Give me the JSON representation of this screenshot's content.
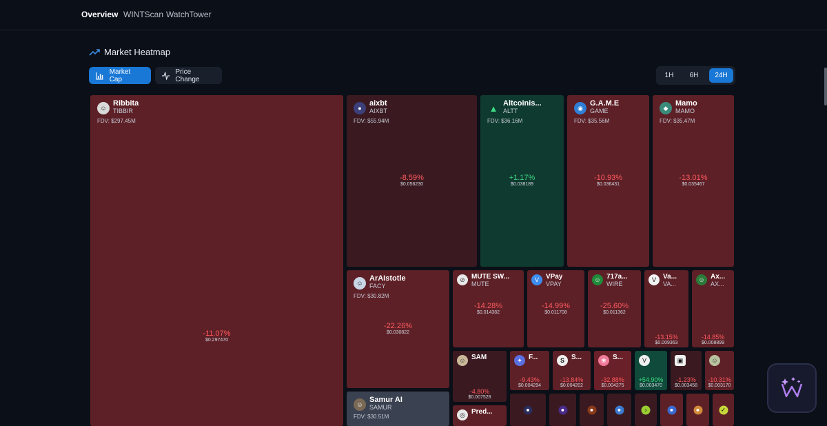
{
  "nav": {
    "items": [
      "Overview",
      "WINTScan",
      "WatchTower"
    ]
  },
  "heading": {
    "title": "Market Heatmap"
  },
  "toggles": {
    "market_cap": "Market Cap",
    "price_change": "Price Change"
  },
  "timeframes": [
    "1H",
    "6H",
    "24H"
  ],
  "tokens": [
    {
      "name": "Ribbita",
      "symbol": "TIBBIR",
      "fdv": "FDV: $297.45M",
      "change": "-11.07%",
      "price": "$0.297470"
    },
    {
      "name": "aixbt",
      "symbol": "AIXBT",
      "fdv": "FDV: $55.94M",
      "change": "-8.59%",
      "price": "$0.056230"
    },
    {
      "name": "Altcoinis...",
      "symbol": "ALTT",
      "fdv": "FDV: $36.16M",
      "change": "+1.17%",
      "price": "$0.038189"
    },
    {
      "name": "G.A.M.E",
      "symbol": "GAME",
      "fdv": "FDV: $35.56M",
      "change": "-10.93%",
      "price": "$0.036431"
    },
    {
      "name": "Mamo",
      "symbol": "MAMO",
      "fdv": "FDV: $35.47M",
      "change": "-13.01%",
      "price": "$0.035467"
    },
    {
      "name": "ArAIstotle",
      "symbol": "FACY",
      "fdv": "FDV: $30.82M",
      "change": "-22.26%",
      "price": "$0.030822"
    },
    {
      "name": "MUTE SW...",
      "symbol": "MUTE",
      "change": "-14.28%",
      "price": "$0.014382"
    },
    {
      "name": "VPay",
      "symbol": "VPAY",
      "change": "-14.99%",
      "price": "$0.011708"
    },
    {
      "name": "717a...",
      "symbol": "WIRE",
      "change": "-25.60%",
      "price": "$0.011362"
    },
    {
      "name": "Va...",
      "symbol": "VA...",
      "change": "-13.15%",
      "price": "$0.009363"
    },
    {
      "name": "Ax...",
      "symbol": "AX...",
      "change": "-14.85%",
      "price": "$0.008899"
    },
    {
      "name": "SAM",
      "change": "-4.80%",
      "price": "$0.007528"
    },
    {
      "name": "F...",
      "change": "-9.43%",
      "price": "$0.004294"
    },
    {
      "name": "S...",
      "change": "-13.84%",
      "price": "$0.004202"
    },
    {
      "name": "S...",
      "change": "-32.88%",
      "price": "$0.004275"
    },
    {
      "change": "+54.90%",
      "price": "$0.003470"
    },
    {
      "change": "-1.23%",
      "price": "$0.003458"
    },
    {
      "change": "-10.31%",
      "price": "$0.003170"
    },
    {
      "name": "Samur AI",
      "symbol": "SAMUR",
      "fdv": "FDV: $30.51M"
    },
    {
      "name": "Pred..."
    }
  ]
}
